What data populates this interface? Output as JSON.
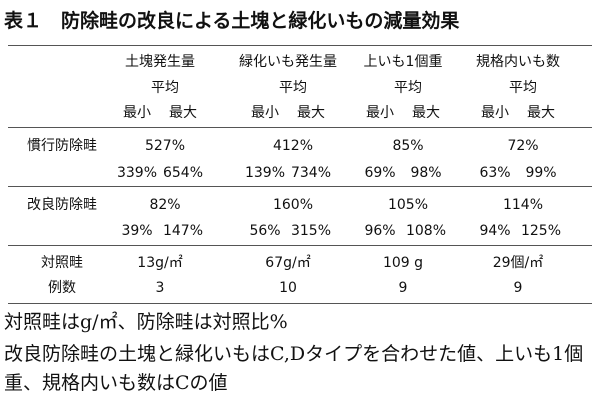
{
  "title": "表１　防除畦の改良による土塊と緑化いもの減量効果",
  "table": {
    "columns": [
      "土塊発生量",
      "緑化いも発生量",
      "上いも1個重",
      "規格内いも数"
    ],
    "average_label": "平均",
    "min_label": "最小",
    "max_label": "最大",
    "rows": [
      {
        "label": "慣行防除畦",
        "average": [
          "527%",
          "412%",
          "85%",
          "72%"
        ],
        "min": [
          "339%",
          "139%",
          "69%",
          "63%"
        ],
        "max": [
          "654%",
          "734%",
          "98%",
          "99%"
        ]
      },
      {
        "label": "改良防除畦",
        "average": [
          "82%",
          "160%",
          "105%",
          "114%"
        ],
        "min": [
          "39%",
          "56%",
          "96%",
          "94%"
        ],
        "max": [
          "147%",
          "315%",
          "108%",
          "125%"
        ]
      },
      {
        "label": "対照畦",
        "values": [
          "13g/㎡",
          "67g/㎡",
          "109 g",
          "29個/㎡"
        ]
      },
      {
        "label": "例数",
        "values": [
          3,
          10,
          9,
          9
        ]
      }
    ]
  },
  "notes": [
    "対照畦はg/㎡、防除畦は対照比%",
    "改良防除畦の土塊と緑化いもはC,Dタイプを合わせた値、上いも1個重、規格内いも数はCの値"
  ]
}
